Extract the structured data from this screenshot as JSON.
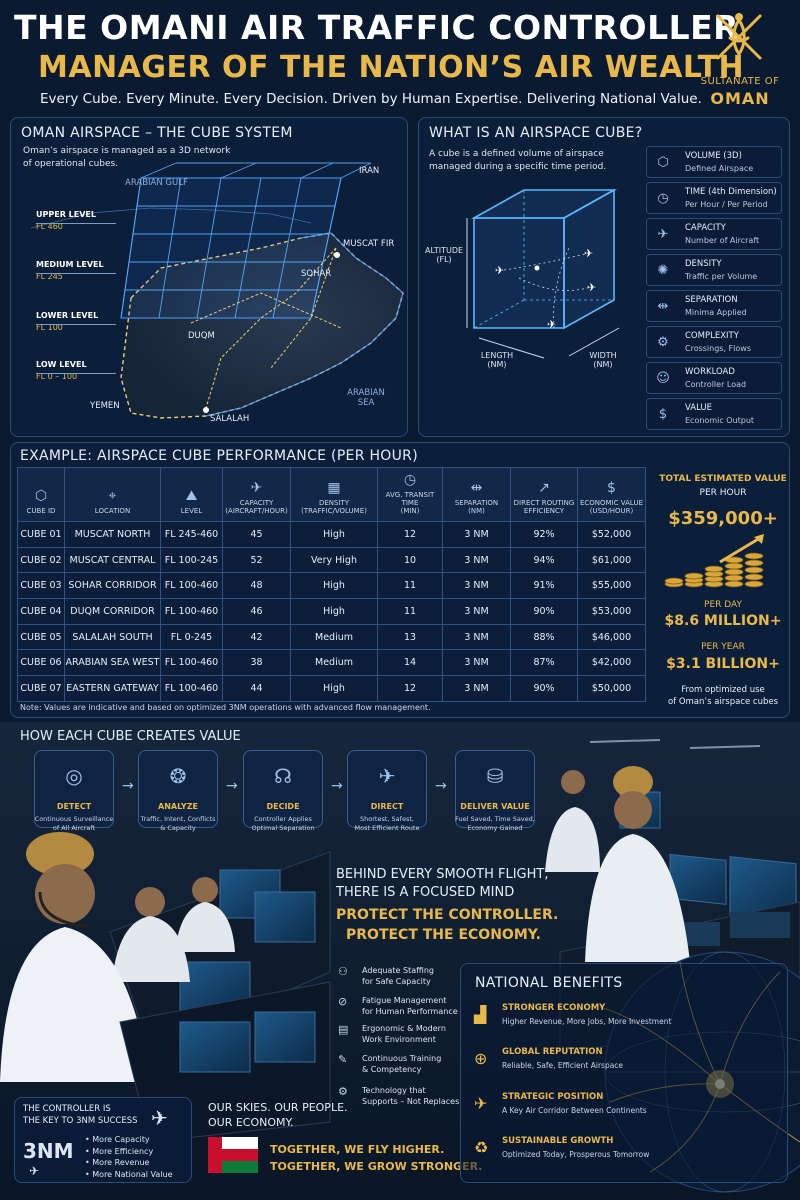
{
  "header": {
    "title_line1": "THE OMANI AIR TRAFFIC CONTROLLER",
    "title_line2": "MANAGER OF THE NATION’S AIR WEALTH",
    "tagline": "Every Cube. Every Minute. Every Decision. Driven by Human Expertise. Delivering National Value.",
    "sultanate_line1": "SULTANATE OF",
    "sultanate_line2": "OMAN",
    "emblem_icon": "khanjar-emblem-icon"
  },
  "cube_system": {
    "title": "OMAN AIRSPACE – THE CUBE SYSTEM",
    "desc_line1": "Oman’s airspace is managed as a 3D network",
    "desc_line2": "of operational cubes.",
    "levels": [
      {
        "name": "UPPER LEVEL",
        "fl": "FL 460"
      },
      {
        "name": "MEDIUM LEVEL",
        "fl": "FL 245"
      },
      {
        "name": "LOWER LEVEL",
        "fl": "FL 100"
      },
      {
        "name": "LOW LEVEL",
        "fl": "FL 0 – 100"
      }
    ],
    "places": {
      "arabian_gulf": "ARABIAN GULF",
      "iran": "IRAN",
      "muscat": "MUSCAT FIR",
      "sohar": "SOHAR",
      "duqm": "DUQM",
      "salalah": "SALALAH",
      "yemen": "YEMEN",
      "arabian_sea_1": "ARABIAN",
      "arabian_sea_2": "SEA"
    }
  },
  "what_is_cube": {
    "title": "WHAT IS AN AIRSPACE CUBE?",
    "desc_line1": "A cube is a defined volume of airspace",
    "desc_line2": "managed during a specific time period.",
    "axis_altitude": "ALTITUDE",
    "axis_altitude_unit": "(FL)",
    "axis_length": "LENGTH",
    "axis_length_unit": "(NM)",
    "axis_width": "WIDTH",
    "axis_width_unit": "(NM)",
    "properties": [
      {
        "title": "VOLUME (3D)",
        "sub": "Defined Airspace",
        "icon": "cube-icon",
        "glyph": "⬡"
      },
      {
        "title": "TIME (4th Dimension)",
        "sub": "Per Hour / Per Period",
        "icon": "clock-icon",
        "glyph": "◷"
      },
      {
        "title": "CAPACITY",
        "sub": "Number of Aircraft",
        "icon": "aircraft-icon",
        "glyph": "✈"
      },
      {
        "title": "DENSITY",
        "sub": "Traffic per Volume",
        "icon": "radar-icon",
        "glyph": "✺"
      },
      {
        "title": "SEPARATION",
        "sub": "Minima Applied",
        "icon": "separation-icon",
        "glyph": "⇹"
      },
      {
        "title": "COMPLEXITY",
        "sub": "Crossings, Flows",
        "icon": "network-icon",
        "glyph": "⚙"
      },
      {
        "title": "WORKLOAD",
        "sub": "Controller Load",
        "icon": "controller-icon",
        "glyph": "☺"
      },
      {
        "title": "VALUE",
        "sub": "Economic Output",
        "icon": "dollar-icon",
        "glyph": "$"
      }
    ]
  },
  "performance": {
    "title": "EXAMPLE: AIRSPACE CUBE PERFORMANCE (PER HOUR)",
    "headers": [
      {
        "l1": "CUBE ID",
        "l2": "",
        "glyph": "⬡",
        "icon": "cube-icon"
      },
      {
        "l1": "LOCATION",
        "l2": "",
        "glyph": "⌖",
        "icon": "location-pin-icon"
      },
      {
        "l1": "LEVEL",
        "l2": "",
        "glyph": "⛰",
        "icon": "mountain-icon"
      },
      {
        "l1": "CAPACITY",
        "l2": "(AIRCRAFT/HOUR)",
        "glyph": "✈",
        "icon": "aircraft-icon"
      },
      {
        "l1": "DENSITY",
        "l2": "(TRAFFIC/VOLUME)",
        "glyph": "▦",
        "icon": "grid-icon"
      },
      {
        "l1": "AVG. TRANSIT TIME",
        "l2": "(MIN)",
        "glyph": "◷",
        "icon": "clock-icon"
      },
      {
        "l1": "SEPARATION",
        "l2": "(NM)",
        "glyph": "⇹",
        "icon": "separation-icon"
      },
      {
        "l1": "DIRECT ROUTING",
        "l2": "EFFICIENCY",
        "glyph": "↗",
        "icon": "route-icon"
      },
      {
        "l1": "ECONOMIC VALUE",
        "l2": "(USD/HOUR)",
        "glyph": "$",
        "icon": "dollar-icon"
      }
    ],
    "rows": [
      [
        "CUBE 01",
        "MUSCAT NORTH",
        "FL 245-460",
        "45",
        "High",
        "12",
        "3 NM",
        "92%",
        "$52,000"
      ],
      [
        "CUBE 02",
        "MUSCAT CENTRAL",
        "FL 100-245",
        "52",
        "Very High",
        "10",
        "3 NM",
        "94%",
        "$61,000"
      ],
      [
        "CUBE 03",
        "SOHAR CORRIDOR",
        "FL 100-460",
        "48",
        "High",
        "11",
        "3 NM",
        "91%",
        "$55,000"
      ],
      [
        "CUBE 04",
        "DUQM CORRIDOR",
        "FL 100-460",
        "46",
        "High",
        "11",
        "3 NM",
        "90%",
        "$53,000"
      ],
      [
        "CUBE 05",
        "SALALAH SOUTH",
        "FL 0-245",
        "42",
        "Medium",
        "13",
        "3 NM",
        "88%",
        "$46,000"
      ],
      [
        "CUBE 06",
        "ARABIAN SEA WEST",
        "FL 100-460",
        "38",
        "Medium",
        "14",
        "3 NM",
        "87%",
        "$42,000"
      ],
      [
        "CUBE 07",
        "EASTERN GATEWAY",
        "FL 100-460",
        "44",
        "High",
        "12",
        "3 NM",
        "90%",
        "$50,000"
      ]
    ],
    "note": "Note: Values are indicative and based on optimized 3NM operations with advanced flow management."
  },
  "value_box": {
    "title_line1": "TOTAL ESTIMATED VALUE",
    "title_line2": "PER HOUR",
    "per_hour": "$359,000+",
    "per_day_label": "PER DAY",
    "per_day": "$8.6 MILLION+",
    "per_year_label": "PER YEAR",
    "per_year": "$3.1 BILLION+",
    "footer_line1": "From optimized use",
    "footer_line2": "of Oman’s airspace cubes"
  },
  "process": {
    "title": "HOW EACH CUBE CREATES VALUE",
    "steps": [
      {
        "title": "DETECT",
        "l1": "Continuous Surveillance",
        "l2": "of All Aircraft",
        "icon": "radar-icon",
        "glyph": "◎"
      },
      {
        "title": "ANALYZE",
        "l1": "Traffic, Intent, Conflicts",
        "l2": "& Capacity",
        "icon": "brain-icon",
        "glyph": "❂"
      },
      {
        "title": "DECIDE",
        "l1": "Controller Applies",
        "l2": "Optimal Separation",
        "icon": "headset-icon",
        "glyph": "☊"
      },
      {
        "title": "DIRECT",
        "l1": "Shortest, Safest,",
        "l2": "Most Efficient Route",
        "icon": "aircraft-route-icon",
        "glyph": "✈"
      },
      {
        "title": "DELIVER VALUE",
        "l1": "Fuel Saved, Time Saved,",
        "l2": "Economy Gained",
        "icon": "coins-icon",
        "glyph": "⛁"
      }
    ]
  },
  "protect": {
    "line1": "BEHIND EVERY SMOOTH FLIGHT,",
    "line2": "THERE IS A FOCUSED MIND",
    "gold1": "PROTECT THE CONTROLLER.",
    "gold2": "PROTECT THE ECONOMY.",
    "items": [
      {
        "l1": "Adequate Staffing",
        "l2": "for Safe Capacity",
        "icon": "staff-icon",
        "glyph": "⚇"
      },
      {
        "l1": "Fatigue Management",
        "l2": "for Human Performance",
        "icon": "fatigue-icon",
        "glyph": "⊘"
      },
      {
        "l1": "Ergonomic & Modern",
        "l2": "Work Environment",
        "icon": "workstation-icon",
        "glyph": "▤"
      },
      {
        "l1": "Continuous Training",
        "l2": "& Competency",
        "icon": "training-icon",
        "glyph": "✎"
      },
      {
        "l1": "Technology that",
        "l2": "Supports – Not Replaces",
        "icon": "technology-icon",
        "glyph": "⚙"
      }
    ]
  },
  "key_box": {
    "title_line1": "THE CONTROLLER IS",
    "title_line2": "THE KEY TO 3NM SUCCESS",
    "big": "3NM",
    "bullets": [
      "More Capacity",
      "More Efficiency",
      "More Revenue",
      "More National Value"
    ]
  },
  "slogan": {
    "line1": "OUR SKIES. OUR PEOPLE.",
    "line2": "OUR ECONOMY.",
    "gold1": "TOGETHER, WE FLY HIGHER.",
    "gold2": "TOGETHER, WE GROW STRONGER."
  },
  "benefits": {
    "title": "NATIONAL BENEFITS",
    "items": [
      {
        "title": "STRONGER ECONOMY",
        "sub": "Higher Revenue, More Jobs, More Investment",
        "icon": "growth-chart-icon",
        "glyph": "▟"
      },
      {
        "title": "GLOBAL REPUTATION",
        "sub": "Reliable, Safe, Efficient Airspace",
        "icon": "globe-icon",
        "glyph": "⊕"
      },
      {
        "title": "STRATEGIC POSITION",
        "sub": "A Key Air Corridor Between Continents",
        "icon": "aircraft-icon",
        "glyph": "✈"
      },
      {
        "title": "SUSTAINABLE GROWTH",
        "sub": "Optimized Today, Prosperous Tomorrow",
        "icon": "sustainability-icon",
        "glyph": "♻"
      }
    ]
  },
  "colors": {
    "background": "#0a1a30",
    "accent_gold": "#e8b84a",
    "grid_blue": "#3f8cff",
    "flag_red": "#c8102e",
    "flag_green": "#0b7a3b"
  }
}
